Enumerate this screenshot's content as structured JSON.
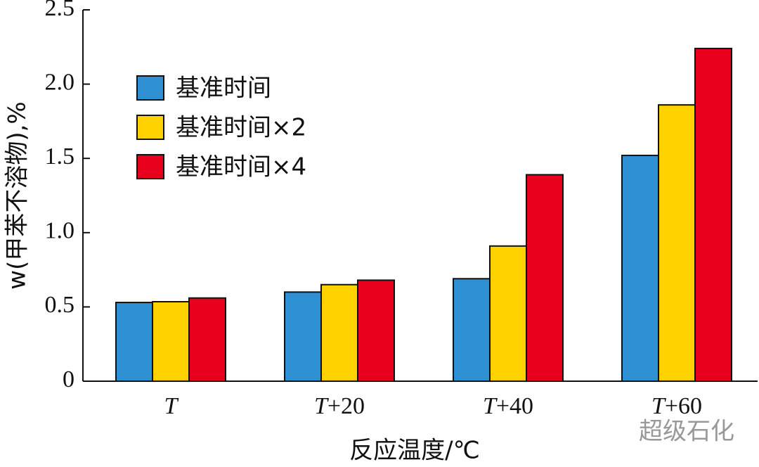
{
  "chart_data": {
    "type": "bar",
    "y_label": "w(甲苯不溶物),%",
    "x_label": "反应温度/℃",
    "watermark": "超级石化",
    "categories": [
      "T",
      "T+20",
      "T+40",
      "T+60"
    ],
    "series": [
      {
        "name": "基准时间",
        "color": "#2f8fd3",
        "values": [
          0.53,
          0.6,
          0.69,
          1.52
        ]
      },
      {
        "name": "基准时间×2",
        "color": "#ffd200",
        "values": [
          0.535,
          0.65,
          0.91,
          1.86
        ]
      },
      {
        "name": "基准时间×4",
        "color": "#e8001c",
        "values": [
          0.56,
          0.68,
          1.39,
          2.24
        ]
      }
    ],
    "ylim": [
      0,
      2.5
    ],
    "yticks": [
      0,
      0.5,
      {
        "value": 1,
        "label": "1.0"
      },
      1.5,
      {
        "value": 2,
        "label": "2.0"
      },
      2.5
    ],
    "legend": "upper left"
  }
}
